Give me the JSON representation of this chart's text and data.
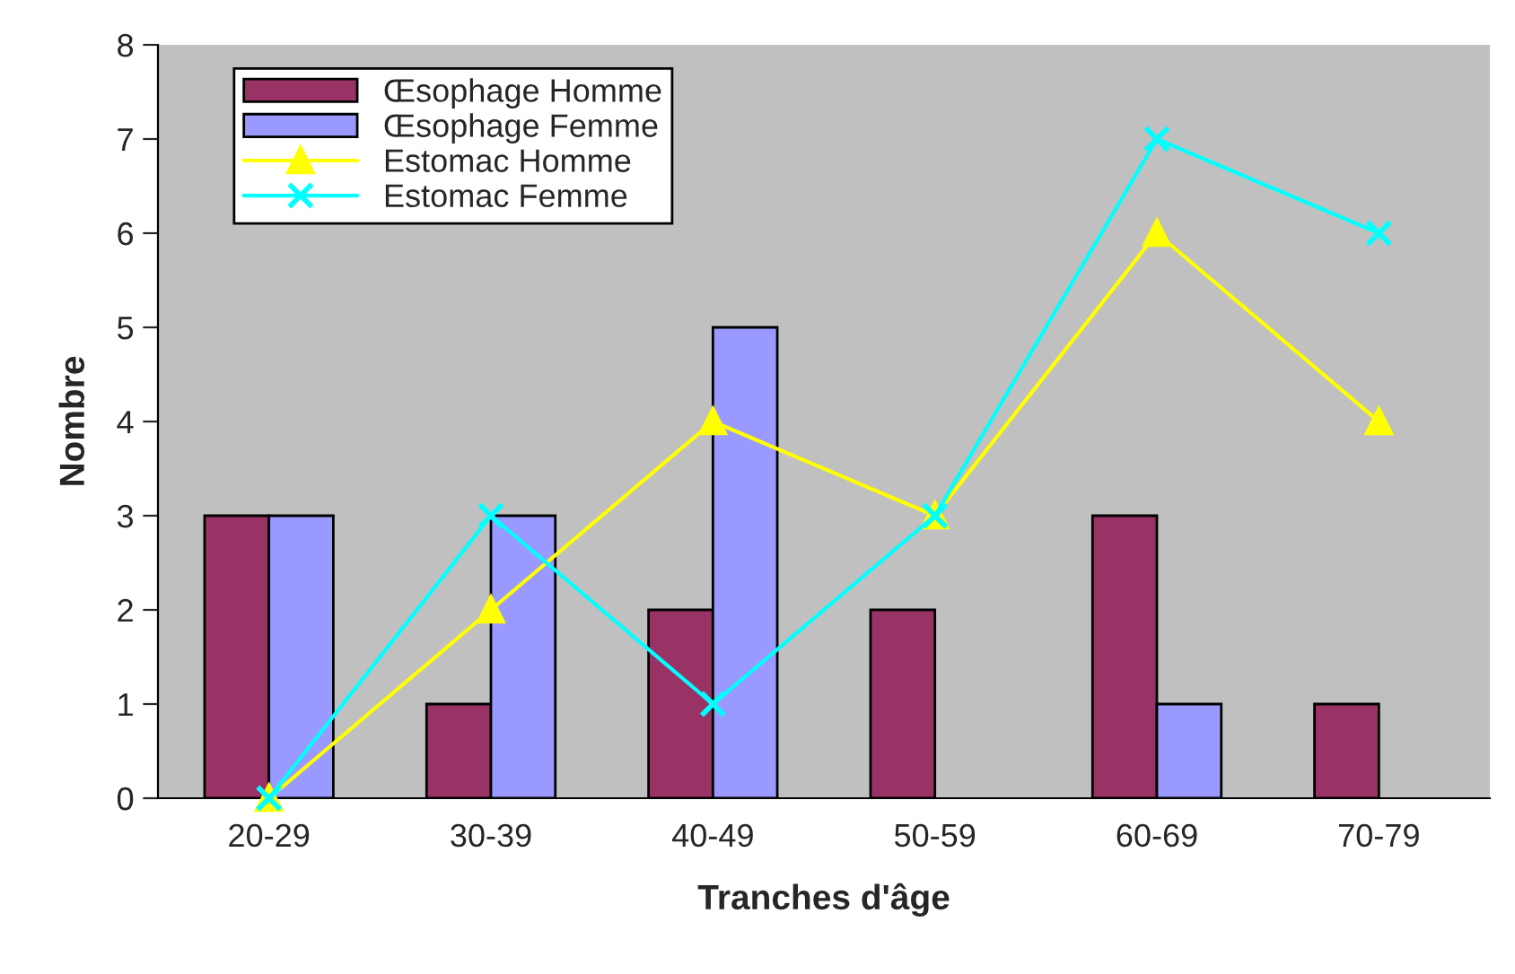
{
  "chart_data": {
    "type": "bar",
    "xlabel": "Tranches d'âge",
    "ylabel": "Nombre",
    "categories": [
      "20-29",
      "30-39",
      "40-49",
      "50-59",
      "60-69",
      "70-79"
    ],
    "series": [
      {
        "name": "Œsophage Homme",
        "color": "#993366",
        "values": [
          3,
          1,
          2,
          2,
          3,
          1
        ]
      },
      {
        "name": "Œsophage Femme",
        "color": "#9999ff",
        "values": [
          3,
          3,
          5,
          null,
          1,
          null
        ]
      },
      {
        "name": "Estomac Homme",
        "type": "line",
        "marker": "triangle",
        "color": "#ffff00",
        "values": [
          0,
          2,
          4,
          3,
          6,
          4
        ]
      },
      {
        "name": "Estomac Femme",
        "type": "line",
        "marker": "cross",
        "color": "#00ffff",
        "values": [
          0,
          3,
          1,
          3,
          7,
          6
        ]
      }
    ],
    "ylim": [
      0,
      8
    ],
    "yticks": [
      0,
      1,
      2,
      3,
      4,
      5,
      6,
      7,
      8
    ],
    "grid": false,
    "legend": "top left"
  }
}
